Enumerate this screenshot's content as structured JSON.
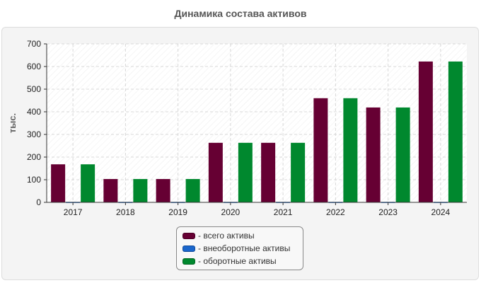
{
  "chart_data": {
    "type": "bar",
    "title": "Динамика состава активов",
    "xlabel": "",
    "ylabel": "тыс.",
    "categories": [
      "2017",
      "2018",
      "2019",
      "2020",
      "2021",
      "2022",
      "2023",
      "2024"
    ],
    "ylim": [
      0,
      700
    ],
    "yticks": [
      0,
      100,
      200,
      300,
      400,
      500,
      600,
      700
    ],
    "grid": true,
    "legend_position": "bottom-center",
    "series": [
      {
        "name": "- всего активы",
        "color": "#660033",
        "values": [
          168,
          103,
          103,
          263,
          263,
          460,
          419,
          622
        ]
      },
      {
        "name": "- внеоборотные активы",
        "color": "#1a66cc",
        "values": [
          2,
          2,
          2,
          2,
          2,
          2,
          2,
          2
        ]
      },
      {
        "name": "- оборотные активы",
        "color": "#00882e",
        "values": [
          168,
          103,
          103,
          263,
          263,
          460,
          419,
          622
        ]
      }
    ]
  }
}
